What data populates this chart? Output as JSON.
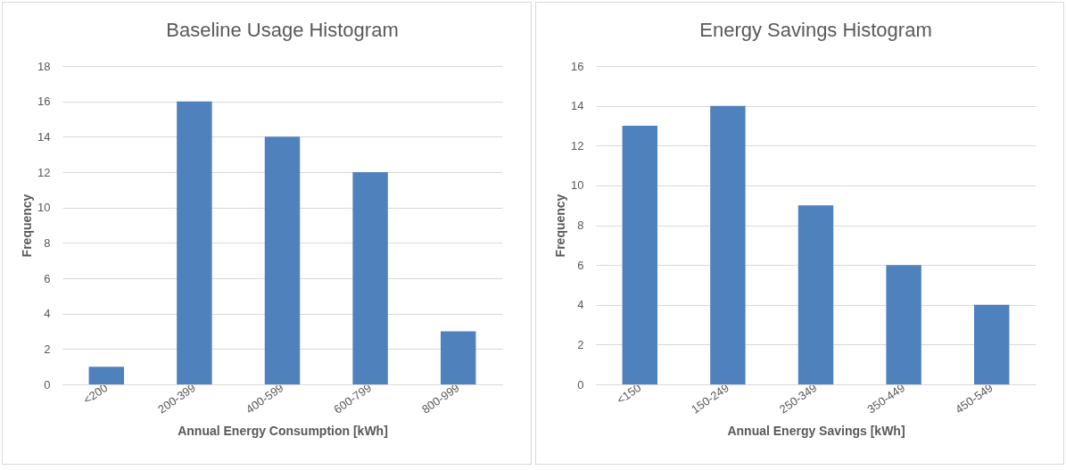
{
  "chart_data": [
    {
      "type": "bar",
      "title": "Baseline Usage Histogram",
      "xlabel": "Annual Energy Consumption [kWh]",
      "ylabel": "Frequency",
      "categories": [
        "<200",
        "200-399",
        "400-599",
        "600-799",
        "800-999"
      ],
      "values": [
        1,
        16,
        14,
        12,
        3
      ],
      "color": "#4f81bd",
      "ylim": [
        0,
        18
      ],
      "yticks": [
        0,
        2,
        4,
        6,
        8,
        10,
        12,
        14,
        16,
        18
      ],
      "grid": "y"
    },
    {
      "type": "bar",
      "title": "Energy Savings Histogram",
      "xlabel": "Annual Energy Savings [kWh]",
      "ylabel": "Frequency",
      "categories": [
        "<150",
        "150-249",
        "250-349",
        "350-449",
        "450-549"
      ],
      "values": [
        13,
        14,
        9,
        6,
        4
      ],
      "color": "#4f81bd",
      "ylim": [
        0,
        16
      ],
      "yticks": [
        0,
        2,
        4,
        6,
        8,
        10,
        12,
        14,
        16
      ],
      "grid": "y"
    }
  ]
}
